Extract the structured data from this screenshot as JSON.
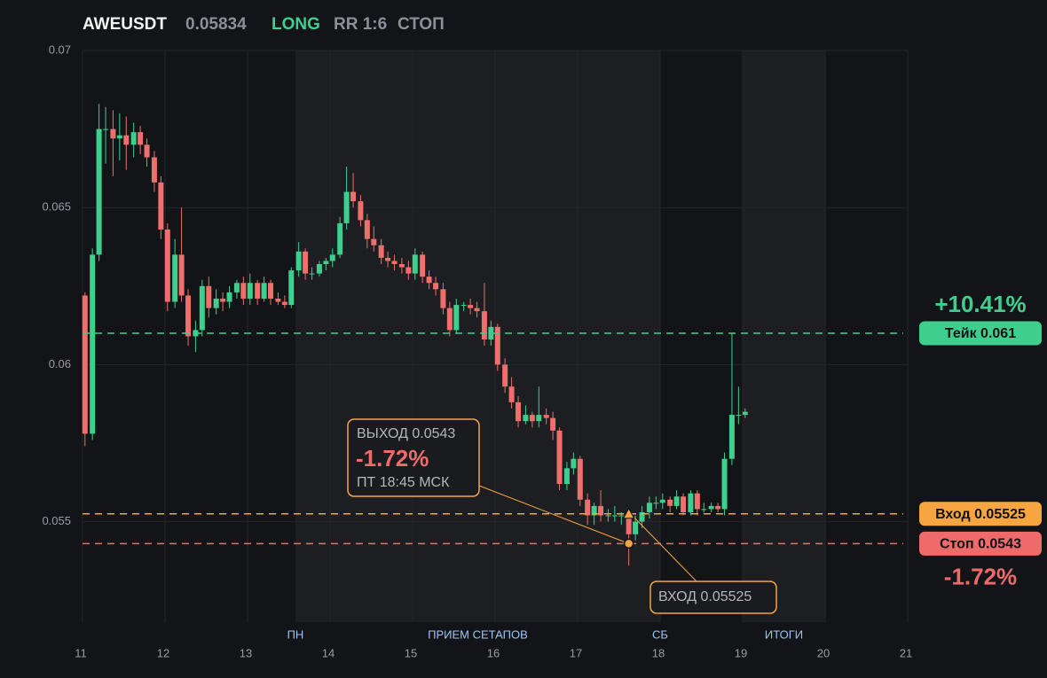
{
  "chart_data": {
    "type": "candlestick",
    "title": "AWEUSDT",
    "price": 0.05834,
    "side": "LONG",
    "rr": "RR 1:6",
    "status": "СТОП",
    "up_color": "#3ecf8e",
    "down_color": "#ef6f6c",
    "grid": true,
    "xlim": [
      11,
      21
    ],
    "xticks": [
      11,
      12,
      13,
      14,
      15,
      16,
      17,
      18,
      19,
      20,
      21
    ],
    "ylim": [
      0.0518,
      0.07
    ],
    "yticks": [
      0.055,
      0.06,
      0.065,
      0.07
    ],
    "shaded": [
      [
        13.58,
        18
      ],
      [
        19,
        20
      ]
    ],
    "session_labels": [
      {
        "label": "ПН",
        "x": 13.58
      },
      {
        "label": "ПРИЕМ СЕТАПОВ",
        "x": 15.79
      },
      {
        "label": "СБ",
        "x": 18
      },
      {
        "label": "ИТОГИ",
        "x": 19.5
      }
    ],
    "x": [
      11.03,
      11.12,
      11.2,
      11.28,
      11.37,
      11.45,
      11.53,
      11.62,
      11.7,
      11.78,
      11.87,
      11.95,
      12.03,
      12.12,
      12.2,
      12.28,
      12.37,
      12.45,
      12.53,
      12.62,
      12.7,
      12.78,
      12.87,
      12.95,
      13.03,
      13.12,
      13.2,
      13.28,
      13.37,
      13.45,
      13.53,
      13.62,
      13.7,
      13.78,
      13.87,
      13.95,
      14.03,
      14.12,
      14.2,
      14.28,
      14.37,
      14.45,
      14.53,
      14.62,
      14.7,
      14.78,
      14.87,
      14.95,
      15.03,
      15.12,
      15.2,
      15.28,
      15.37,
      15.45,
      15.53,
      15.62,
      15.7,
      15.78,
      15.87,
      15.95,
      16.03,
      16.12,
      16.2,
      16.28,
      16.37,
      16.45,
      16.53,
      16.62,
      16.7,
      16.78,
      16.87,
      16.95,
      17.03,
      17.12,
      17.2,
      17.28,
      17.37,
      17.45,
      17.53,
      17.62,
      17.7,
      17.78,
      17.87,
      17.95,
      18.03,
      18.12,
      18.2,
      18.28,
      18.37,
      18.45,
      18.53,
      18.62,
      18.7,
      18.78,
      18.87,
      18.95,
      19.03
    ],
    "open": [
      0.0622,
      0.0578,
      0.0635,
      0.0675,
      0.0675,
      0.0672,
      0.0673,
      0.067,
      0.0674,
      0.067,
      0.0666,
      0.0658,
      0.0643,
      0.062,
      0.0635,
      0.0622,
      0.0609,
      0.0611,
      0.0625,
      0.0618,
      0.0621,
      0.062,
      0.0623,
      0.0626,
      0.0621,
      0.0626,
      0.0621,
      0.0626,
      0.0621,
      0.062,
      0.0619,
      0.063,
      0.0636,
      0.0629,
      0.0629,
      0.0632,
      0.0633,
      0.0635,
      0.0645,
      0.0655,
      0.0652,
      0.0646,
      0.064,
      0.0638,
      0.0634,
      0.0633,
      0.0632,
      0.0631,
      0.0629,
      0.0635,
      0.0628,
      0.0626,
      0.0624,
      0.0618,
      0.0611,
      0.0619,
      0.0619,
      0.0618,
      0.0617,
      0.0608,
      0.0612,
      0.06,
      0.0593,
      0.0588,
      0.0582,
      0.0584,
      0.0582,
      0.0584,
      0.0583,
      0.0579,
      0.0562,
      0.0567,
      0.057,
      0.0557,
      0.0552,
      0.0555,
      0.0552,
      0.0552,
      0.0552,
      0.0552,
      0.0546,
      0.055,
      0.0553,
      0.0556,
      0.0556,
      0.0557,
      0.0555,
      0.0558,
      0.0553,
      0.0559,
      0.0554,
      0.0554,
      0.0555,
      0.0554,
      0.057,
      0.0584,
      0.0584
    ],
    "high": [
      0.0623,
      0.0637,
      0.0683,
      0.0682,
      0.0681,
      0.068,
      0.0679,
      0.0677,
      0.0676,
      0.0672,
      0.0668,
      0.066,
      0.0645,
      0.064,
      0.065,
      0.0624,
      0.0614,
      0.0627,
      0.0628,
      0.0624,
      0.0623,
      0.0625,
      0.0627,
      0.0628,
      0.0629,
      0.0627,
      0.0628,
      0.0627,
      0.0623,
      0.0622,
      0.0631,
      0.0639,
      0.0637,
      0.0631,
      0.0633,
      0.0634,
      0.0637,
      0.0647,
      0.0663,
      0.0661,
      0.0654,
      0.0648,
      0.0644,
      0.064,
      0.0636,
      0.0635,
      0.0634,
      0.0633,
      0.0637,
      0.0636,
      0.063,
      0.0628,
      0.0626,
      0.062,
      0.0621,
      0.062,
      0.0621,
      0.062,
      0.0626,
      0.0614,
      0.0613,
      0.0602,
      0.0596,
      0.059,
      0.0587,
      0.0585,
      0.0593,
      0.0586,
      0.0585,
      0.058,
      0.0569,
      0.0572,
      0.0571,
      0.0559,
      0.0556,
      0.056,
      0.0554,
      0.0555,
      0.0553,
      0.0554,
      0.0552,
      0.0555,
      0.0558,
      0.0558,
      0.0559,
      0.0558,
      0.056,
      0.0559,
      0.056,
      0.056,
      0.0556,
      0.0556,
      0.0556,
      0.0572,
      0.061,
      0.0593,
      0.0586
    ],
    "low": [
      0.0574,
      0.0576,
      0.0633,
      0.0664,
      0.066,
      0.0665,
      0.0662,
      0.0666,
      0.0667,
      0.0663,
      0.0655,
      0.064,
      0.0617,
      0.0618,
      0.062,
      0.0606,
      0.0604,
      0.0609,
      0.0615,
      0.0616,
      0.0617,
      0.0618,
      0.0621,
      0.0619,
      0.0619,
      0.0619,
      0.062,
      0.0619,
      0.0619,
      0.0618,
      0.0618,
      0.0628,
      0.0627,
      0.0627,
      0.0628,
      0.063,
      0.0631,
      0.0634,
      0.0643,
      0.065,
      0.0644,
      0.0637,
      0.0636,
      0.0632,
      0.0631,
      0.063,
      0.0629,
      0.0627,
      0.0627,
      0.0626,
      0.0624,
      0.0622,
      0.0616,
      0.0609,
      0.061,
      0.0617,
      0.0616,
      0.0615,
      0.0606,
      0.0606,
      0.0598,
      0.0591,
      0.0586,
      0.058,
      0.0581,
      0.058,
      0.058,
      0.0581,
      0.0576,
      0.056,
      0.056,
      0.0565,
      0.0555,
      0.0549,
      0.0549,
      0.055,
      0.055,
      0.055,
      0.0549,
      0.0536,
      0.0544,
      0.0548,
      0.0551,
      0.0554,
      0.0554,
      0.0553,
      0.0554,
      0.0552,
      0.0552,
      0.0552,
      0.0553,
      0.0553,
      0.0553,
      0.0552,
      0.0568,
      0.0581,
      0.0583
    ],
    "close": [
      0.0578,
      0.0635,
      0.0675,
      0.0675,
      0.0672,
      0.0673,
      0.067,
      0.0674,
      0.067,
      0.0666,
      0.0658,
      0.0643,
      0.062,
      0.0635,
      0.0622,
      0.0609,
      0.0611,
      0.0625,
      0.0618,
      0.0621,
      0.062,
      0.0623,
      0.0626,
      0.0621,
      0.0626,
      0.0621,
      0.0626,
      0.0621,
      0.062,
      0.0619,
      0.063,
      0.0636,
      0.0629,
      0.0629,
      0.0632,
      0.0633,
      0.0635,
      0.0645,
      0.0655,
      0.0652,
      0.0646,
      0.064,
      0.0638,
      0.0634,
      0.0633,
      0.0632,
      0.0631,
      0.0629,
      0.0635,
      0.0628,
      0.0626,
      0.0624,
      0.0618,
      0.0611,
      0.0619,
      0.0619,
      0.0618,
      0.0617,
      0.0608,
      0.0612,
      0.06,
      0.0593,
      0.0588,
      0.0582,
      0.0584,
      0.0582,
      0.0584,
      0.0583,
      0.0579,
      0.0562,
      0.0567,
      0.057,
      0.0557,
      0.0552,
      0.0555,
      0.0552,
      0.0552,
      0.0552,
      0.0552,
      0.0546,
      0.055,
      0.0553,
      0.0556,
      0.0556,
      0.0557,
      0.0555,
      0.0558,
      0.0553,
      0.0559,
      0.0554,
      0.0554,
      0.0555,
      0.0554,
      0.057,
      0.0584,
      0.0584,
      0.0585
    ],
    "levels": [
      {
        "label": "Тейк 0.061",
        "value": 0.061,
        "color": "#3ecf8e",
        "change": "+10.41%"
      },
      {
        "label": "Вход 0.05525",
        "value": 0.05525,
        "color": "#f7a541"
      },
      {
        "label": "Стоп 0.0543",
        "value": 0.0543,
        "color": "#ef6b6b",
        "change": "-1.72%"
      }
    ],
    "exit": {
      "title": "ВЫХОД 0.0543",
      "change": "-1.72%",
      "time": "ПТ 18:45 МСК",
      "x": 17.62,
      "value": 0.0543
    },
    "entry": {
      "title": "ВХОД 0.05525",
      "x": 17.62,
      "value": 0.05525
    }
  }
}
